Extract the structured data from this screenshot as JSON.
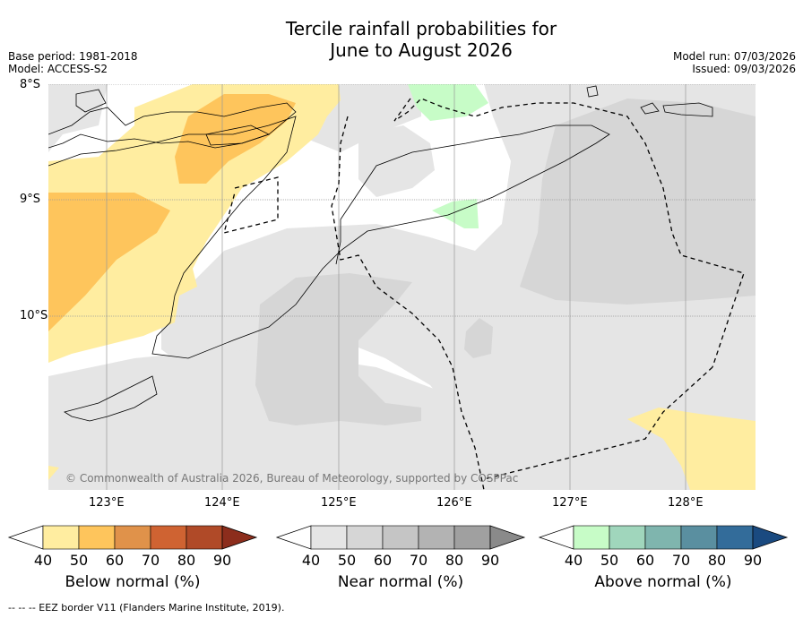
{
  "title_line1": "Tercile rainfall probabilities for",
  "title_line2": "June to August 2026",
  "meta_left": {
    "base_period": "Base period: 1981-2018",
    "model": "Model: ACCESS-S2"
  },
  "meta_right": {
    "model_run": "Model run: 07/03/2026",
    "issued": "Issued: 09/03/2026"
  },
  "map": {
    "lat_labels": [
      "8°S",
      "9°S",
      "10°S"
    ],
    "lon_labels": [
      "123°E",
      "124°E",
      "125°E",
      "126°E",
      "127°E",
      "128°E"
    ],
    "copyright": "© Commonwealth of Australia 2026, Bureau of Meteorology, supported by COSPPac"
  },
  "colorbars": [
    {
      "title": "Below normal (%)",
      "ticks": [
        "40",
        "50",
        "60",
        "70",
        "80",
        "90"
      ],
      "colors": [
        "#ffeda0",
        "#fec55c",
        "#e0924a",
        "#cf6332",
        "#b04a28",
        "#8c2d1c"
      ]
    },
    {
      "title": "Near normal (%)",
      "ticks": [
        "40",
        "50",
        "60",
        "70",
        "80",
        "90"
      ],
      "colors": [
        "#e5e5e5",
        "#d6d6d6",
        "#c5c5c5",
        "#b3b3b3",
        "#a0a0a0",
        "#8a8a8a"
      ]
    },
    {
      "title": "Above normal (%)",
      "ticks": [
        "40",
        "50",
        "60",
        "70",
        "80",
        "90"
      ],
      "colors": [
        "#c7fcc7",
        "#a0d6bc",
        "#7fb5ae",
        "#5a8fa0",
        "#336c9a",
        "#1a4a80"
      ]
    }
  ],
  "footnote": "--  --  -- EEZ border V11 (Flanders Marine Institute, 2019)."
}
